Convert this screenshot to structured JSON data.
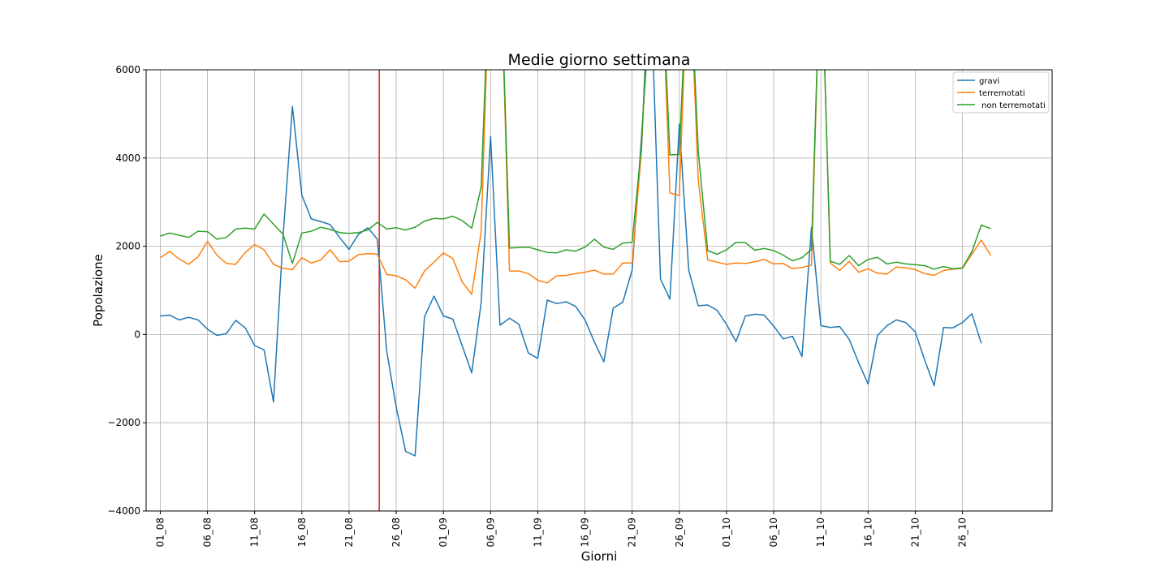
{
  "chart_data": {
    "type": "line",
    "title": "Medie giorno settimana",
    "xlabel": "Giorni",
    "ylabel": "Popolazione",
    "ylim": [
      -4000,
      6000
    ],
    "xlim": [
      -1.5,
      94.5
    ],
    "yticks": [
      -4000,
      -2000,
      0,
      2000,
      4000,
      6000
    ],
    "ytick_labels": [
      "−4000",
      "−2000",
      "0",
      "2000",
      "4000",
      "6000"
    ],
    "xtick_positions": [
      0,
      5,
      10,
      15,
      20,
      25,
      30,
      35,
      40,
      45,
      50,
      55,
      60,
      65,
      70,
      75,
      80,
      85
    ],
    "xtick_labels": [
      "01_08",
      "06_08",
      "11_08",
      "16_08",
      "21_08",
      "26_08",
      "01_09",
      "06_09",
      "11_09",
      "16_09",
      "21_09",
      "26_09",
      "01_10",
      "06_10",
      "11_10",
      "16_10",
      "21_10",
      "26_10"
    ],
    "grid": true,
    "legend_position": "top-right",
    "vline": {
      "x": 23.2,
      "color": "#d62728"
    },
    "series": [
      {
        "name": "gravi",
        "color": "#1f77b4",
        "values": [
          420,
          440,
          330,
          390,
          330,
          120,
          -20,
          20,
          320,
          150,
          -250,
          -350,
          -1530,
          2200,
          5170,
          3160,
          2620,
          2560,
          2490,
          2200,
          1930,
          2270,
          2420,
          2160,
          -380,
          -1650,
          -2650,
          -2750,
          400,
          870,
          420,
          350,
          -260,
          -870,
          720,
          4490,
          210,
          370,
          230,
          -420,
          -540,
          780,
          700,
          740,
          640,
          330,
          -170,
          -620,
          600,
          730,
          1460,
          4500,
          7700,
          1260,
          800,
          4770,
          1460,
          650,
          670,
          550,
          230,
          -160,
          420,
          460,
          440,
          190,
          -100,
          -40,
          -500,
          2430,
          200,
          160,
          180,
          -110,
          -640,
          -1120,
          -20,
          200,
          330,
          270,
          60,
          -580,
          -1160,
          160,
          150,
          270,
          470,
          -200
        ]
      },
      {
        "name": "terremotati",
        "color": "#ff7f0e",
        "values": [
          1740,
          1880,
          1710,
          1590,
          1760,
          2110,
          1800,
          1610,
          1590,
          1860,
          2040,
          1920,
          1590,
          1500,
          1470,
          1740,
          1620,
          1690,
          1920,
          1650,
          1660,
          1810,
          1830,
          1820,
          1360,
          1330,
          1240,
          1050,
          1440,
          1640,
          1850,
          1720,
          1190,
          910,
          2330,
          9000,
          9000,
          1440,
          1440,
          1380,
          1230,
          1170,
          1330,
          1340,
          1380,
          1410,
          1460,
          1370,
          1370,
          1620,
          1620,
          4200,
          9000,
          9000,
          3210,
          3150,
          9000,
          3500,
          1690,
          1640,
          1590,
          1620,
          1610,
          1650,
          1700,
          1600,
          1610,
          1490,
          1520,
          1570,
          9000,
          1620,
          1450,
          1660,
          1410,
          1490,
          1390,
          1370,
          1530,
          1510,
          1470,
          1380,
          1340,
          1450,
          1480,
          1500,
          1820,
          2140,
          1790
        ]
      },
      {
        "name": " non terremotati",
        "color": "#2ca02c",
        "values": [
          2230,
          2300,
          2250,
          2200,
          2340,
          2330,
          2160,
          2200,
          2390,
          2410,
          2390,
          2730,
          2500,
          2270,
          1610,
          2300,
          2340,
          2430,
          2380,
          2310,
          2290,
          2310,
          2370,
          2540,
          2390,
          2420,
          2370,
          2430,
          2570,
          2630,
          2620,
          2680,
          2580,
          2410,
          3340,
          9000,
          9000,
          1960,
          1970,
          1980,
          1920,
          1860,
          1850,
          1920,
          1890,
          1980,
          2160,
          1980,
          1930,
          2070,
          2090,
          4300,
          9000,
          9000,
          4070,
          4080,
          9000,
          4160,
          1900,
          1820,
          1920,
          2090,
          2080,
          1910,
          1950,
          1900,
          1800,
          1670,
          1740,
          1930,
          9000,
          1660,
          1590,
          1790,
          1560,
          1700,
          1750,
          1600,
          1640,
          1600,
          1580,
          1560,
          1480,
          1540,
          1490,
          1510,
          1880,
          2480,
          2400
        ]
      }
    ]
  }
}
